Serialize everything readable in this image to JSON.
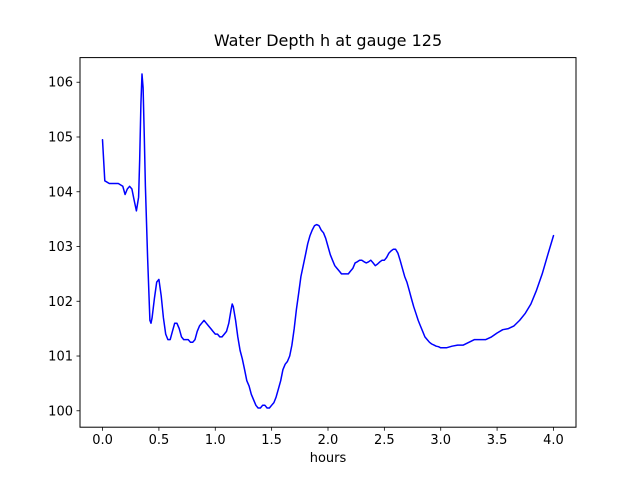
{
  "figure": {
    "title": "Water Depth h at gauge 125",
    "xlabel": "hours"
  },
  "chart_data": {
    "type": "line",
    "title": "Water Depth h at gauge 125",
    "xlabel": "hours",
    "ylabel": "",
    "grid": false,
    "legend": null,
    "line_color": "#0000ff",
    "xlim": [
      -0.2,
      4.2
    ],
    "ylim": [
      99.7,
      106.45
    ],
    "xticks": [
      0.0,
      0.5,
      1.0,
      1.5,
      2.0,
      2.5,
      3.0,
      3.5,
      4.0
    ],
    "xtick_labels": [
      "0.0",
      "0.5",
      "1.0",
      "1.5",
      "2.0",
      "2.5",
      "3.0",
      "3.5",
      "4.0"
    ],
    "yticks": [
      100,
      101,
      102,
      103,
      104,
      105,
      106
    ],
    "ytick_labels": [
      "100",
      "101",
      "102",
      "103",
      "104",
      "105",
      "106"
    ],
    "series": [
      {
        "name": "water-depth-h",
        "color": "#0000ff",
        "x": [
          0.0,
          0.02,
          0.06,
          0.1,
          0.14,
          0.18,
          0.2,
          0.22,
          0.24,
          0.26,
          0.28,
          0.3,
          0.32,
          0.33,
          0.34,
          0.35,
          0.36,
          0.37,
          0.38,
          0.4,
          0.42,
          0.43,
          0.44,
          0.46,
          0.48,
          0.5,
          0.52,
          0.54,
          0.56,
          0.58,
          0.6,
          0.62,
          0.64,
          0.66,
          0.68,
          0.7,
          0.72,
          0.74,
          0.76,
          0.78,
          0.8,
          0.82,
          0.84,
          0.86,
          0.88,
          0.9,
          0.92,
          0.94,
          0.96,
          0.98,
          1.0,
          1.02,
          1.04,
          1.06,
          1.08,
          1.1,
          1.12,
          1.14,
          1.15,
          1.16,
          1.18,
          1.2,
          1.22,
          1.24,
          1.26,
          1.28,
          1.3,
          1.32,
          1.34,
          1.36,
          1.38,
          1.4,
          1.42,
          1.44,
          1.46,
          1.48,
          1.5,
          1.52,
          1.54,
          1.56,
          1.58,
          1.6,
          1.62,
          1.64,
          1.66,
          1.68,
          1.7,
          1.72,
          1.74,
          1.76,
          1.78,
          1.8,
          1.82,
          1.84,
          1.86,
          1.88,
          1.9,
          1.92,
          1.94,
          1.96,
          1.98,
          2.0,
          2.02,
          2.04,
          2.06,
          2.08,
          2.1,
          2.12,
          2.14,
          2.16,
          2.18,
          2.2,
          2.22,
          2.24,
          2.26,
          2.28,
          2.3,
          2.32,
          2.34,
          2.36,
          2.38,
          2.4,
          2.42,
          2.44,
          2.46,
          2.48,
          2.5,
          2.52,
          2.54,
          2.56,
          2.58,
          2.6,
          2.62,
          2.64,
          2.66,
          2.68,
          2.7,
          2.72,
          2.74,
          2.76,
          2.78,
          2.8,
          2.82,
          2.84,
          2.86,
          2.88,
          2.9,
          2.92,
          2.94,
          2.96,
          2.98,
          3.0,
          3.05,
          3.1,
          3.15,
          3.2,
          3.25,
          3.3,
          3.35,
          3.4,
          3.45,
          3.5,
          3.55,
          3.6,
          3.65,
          3.7,
          3.75,
          3.8,
          3.85,
          3.9,
          3.95,
          4.0
        ],
        "y": [
          104.95,
          104.2,
          104.15,
          104.15,
          104.15,
          104.1,
          103.95,
          104.05,
          104.1,
          104.05,
          103.85,
          103.65,
          103.9,
          104.6,
          105.6,
          106.15,
          105.9,
          105.0,
          104.1,
          102.8,
          101.65,
          101.6,
          101.7,
          102.05,
          102.35,
          102.4,
          102.1,
          101.7,
          101.4,
          101.3,
          101.3,
          101.45,
          101.6,
          101.6,
          101.5,
          101.35,
          101.3,
          101.3,
          101.3,
          101.25,
          101.25,
          101.3,
          101.45,
          101.55,
          101.6,
          101.65,
          101.6,
          101.55,
          101.5,
          101.45,
          101.4,
          101.4,
          101.35,
          101.35,
          101.4,
          101.45,
          101.6,
          101.85,
          101.95,
          101.9,
          101.65,
          101.35,
          101.1,
          100.95,
          100.75,
          100.55,
          100.45,
          100.3,
          100.2,
          100.1,
          100.05,
          100.05,
          100.1,
          100.1,
          100.05,
          100.05,
          100.1,
          100.15,
          100.25,
          100.4,
          100.55,
          100.75,
          100.85,
          100.9,
          101.0,
          101.2,
          101.5,
          101.85,
          102.15,
          102.45,
          102.65,
          102.85,
          103.05,
          103.2,
          103.3,
          103.38,
          103.4,
          103.38,
          103.3,
          103.25,
          103.15,
          103.0,
          102.85,
          102.75,
          102.65,
          102.6,
          102.55,
          102.5,
          102.5,
          102.5,
          102.5,
          102.55,
          102.6,
          102.7,
          102.72,
          102.75,
          102.75,
          102.72,
          102.7,
          102.72,
          102.75,
          102.7,
          102.65,
          102.68,
          102.72,
          102.75,
          102.75,
          102.8,
          102.88,
          102.92,
          102.95,
          102.95,
          102.88,
          102.75,
          102.6,
          102.45,
          102.35,
          102.2,
          102.05,
          101.9,
          101.78,
          101.65,
          101.55,
          101.45,
          101.35,
          101.3,
          101.25,
          101.22,
          101.2,
          101.18,
          101.17,
          101.15,
          101.15,
          101.18,
          101.2,
          101.2,
          101.25,
          101.3,
          101.3,
          101.3,
          101.35,
          101.42,
          101.48,
          101.5,
          101.55,
          101.65,
          101.78,
          101.95,
          102.2,
          102.5,
          102.85,
          103.2
        ]
      }
    ]
  }
}
